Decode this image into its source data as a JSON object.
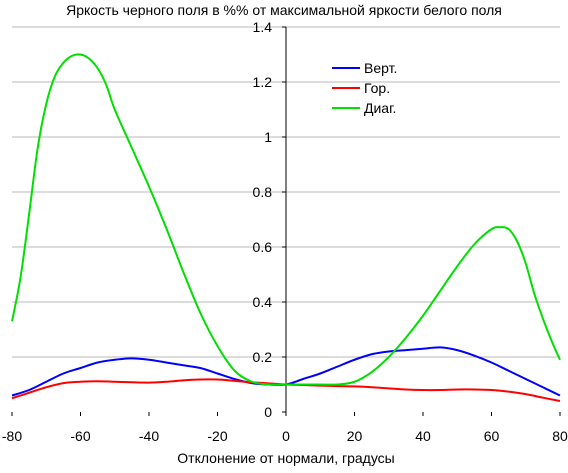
{
  "chart_data": {
    "type": "line",
    "title": "Яркость черного поля в %% от максимальной яркости белого поля",
    "xlabel": "Отклонение от нормали, градусы",
    "ylabel": "",
    "xlim": [
      -80,
      80
    ],
    "ylim": [
      0,
      1.4
    ],
    "x_ticks": [
      "-80",
      "-60",
      "-40",
      "-20",
      "0",
      "20",
      "40",
      "60",
      "80"
    ],
    "y_ticks": [
      "0",
      "0.2",
      "0.4",
      "0.6",
      "0.8",
      "1",
      "1.2",
      "1.4"
    ],
    "grid": {
      "horizontal": true,
      "vertical": false
    },
    "legend_position": "top-right",
    "series": [
      {
        "name": "Верт.",
        "color": "#0000ff",
        "x": [
          -80,
          -75,
          -70,
          -65,
          -60,
          -55,
          -50,
          -45,
          -40,
          -35,
          -30,
          -25,
          -20,
          -15,
          -10,
          -5,
          0,
          5,
          10,
          15,
          20,
          25,
          30,
          35,
          40,
          45,
          50,
          55,
          60,
          65,
          70,
          75,
          80
        ],
        "y": [
          0.06,
          0.08,
          0.11,
          0.14,
          0.16,
          0.18,
          0.19,
          0.195,
          0.19,
          0.18,
          0.17,
          0.16,
          0.14,
          0.12,
          0.105,
          0.1,
          0.1,
          0.12,
          0.14,
          0.165,
          0.19,
          0.21,
          0.22,
          0.225,
          0.23,
          0.235,
          0.225,
          0.205,
          0.18,
          0.15,
          0.12,
          0.09,
          0.06
        ]
      },
      {
        "name": "Гор.",
        "color": "#ff0000",
        "x": [
          -80,
          -75,
          -70,
          -65,
          -60,
          -55,
          -50,
          -45,
          -40,
          -35,
          -30,
          -25,
          -20,
          -15,
          -10,
          -5,
          0,
          5,
          10,
          15,
          20,
          25,
          30,
          35,
          40,
          45,
          50,
          55,
          60,
          65,
          70,
          75,
          80
        ],
        "y": [
          0.05,
          0.07,
          0.09,
          0.105,
          0.11,
          0.112,
          0.11,
          0.108,
          0.107,
          0.11,
          0.115,
          0.118,
          0.118,
          0.113,
          0.108,
          0.104,
          0.1,
          0.098,
          0.096,
          0.094,
          0.093,
          0.09,
          0.086,
          0.082,
          0.08,
          0.08,
          0.082,
          0.082,
          0.08,
          0.074,
          0.065,
          0.052,
          0.04
        ]
      },
      {
        "name": "Диаг.",
        "color": "#00e000",
        "x": [
          -80,
          -77.5,
          -75,
          -72.5,
          -70,
          -67.5,
          -65,
          -62.5,
          -60,
          -57.5,
          -55,
          -52.5,
          -50,
          -45,
          -40,
          -35,
          -30,
          -25,
          -20,
          -15,
          -10,
          -5,
          0,
          5,
          10,
          15,
          20,
          25,
          30,
          35,
          40,
          45,
          50,
          55,
          60,
          62.5,
          65,
          67.5,
          70,
          72.5,
          75,
          77.5,
          80
        ],
        "y": [
          0.33,
          0.49,
          0.72,
          0.96,
          1.12,
          1.22,
          1.27,
          1.295,
          1.3,
          1.285,
          1.25,
          1.19,
          1.1,
          0.96,
          0.82,
          0.67,
          0.51,
          0.36,
          0.24,
          0.15,
          0.11,
          0.1,
          0.1,
          0.1,
          0.1,
          0.1,
          0.11,
          0.145,
          0.2,
          0.27,
          0.35,
          0.44,
          0.53,
          0.61,
          0.665,
          0.672,
          0.665,
          0.62,
          0.54,
          0.43,
          0.34,
          0.26,
          0.19
        ]
      }
    ]
  }
}
